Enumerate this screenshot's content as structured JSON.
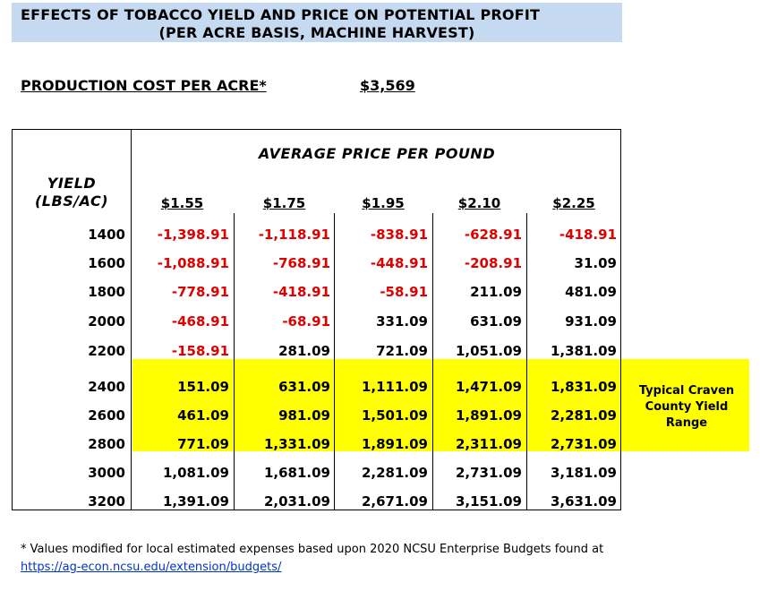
{
  "title": {
    "line1": "EFFECTS OF TOBACCO YIELD AND PRICE ON POTENTIAL PROFIT",
    "line2": "(PER ACRE BASIS, MACHINE HARVEST)"
  },
  "production_cost": {
    "label": "PRODUCTION COST PER ACRE*",
    "value": "$3,569"
  },
  "table": {
    "price_header": "AVERAGE PRICE PER POUND",
    "yield_header_1": "YIELD",
    "yield_header_2": "(LBS/AC)",
    "prices": [
      "$1.55",
      "$1.75",
      "$1.95",
      "$2.10",
      "$2.25"
    ],
    "rows": [
      {
        "yield": "1400",
        "values": [
          "-1,398.91",
          "-1,118.91",
          "-838.91",
          "-628.91",
          "-418.91"
        ]
      },
      {
        "yield": "1600",
        "values": [
          "-1,088.91",
          "-768.91",
          "-448.91",
          "-208.91",
          "31.09"
        ]
      },
      {
        "yield": "1800",
        "values": [
          "-778.91",
          "-418.91",
          "-58.91",
          "211.09",
          "481.09"
        ]
      },
      {
        "yield": "2000",
        "values": [
          "-468.91",
          "-68.91",
          "331.09",
          "631.09",
          "931.09"
        ]
      },
      {
        "yield": "2200",
        "values": [
          "-158.91",
          "281.09",
          "721.09",
          "1,051.09",
          "1,381.09"
        ]
      },
      {
        "yield": "2400",
        "values": [
          "151.09",
          "631.09",
          "1,111.09",
          "1,471.09",
          "1,831.09"
        ]
      },
      {
        "yield": "2600",
        "values": [
          "461.09",
          "981.09",
          "1,501.09",
          "1,891.09",
          "2,281.09"
        ]
      },
      {
        "yield": "2800",
        "values": [
          "771.09",
          "1,331.09",
          "1,891.09",
          "2,311.09",
          "2,731.09"
        ]
      },
      {
        "yield": "3000",
        "values": [
          "1,081.09",
          "1,681.09",
          "2,281.09",
          "2,731.09",
          "3,181.09"
        ]
      },
      {
        "yield": "3200",
        "values": [
          "1,391.09",
          "2,031.09",
          "2,671.09",
          "3,151.09",
          "3,631.09"
        ]
      }
    ],
    "highlight_note": [
      "Typical Craven",
      "County Yield",
      "Range"
    ],
    "colors": {
      "negative": "#e00000",
      "highlight": "#ffff00",
      "title_bg": "#c5d9f1"
    }
  },
  "footnote": {
    "text": "* Values modified for local estimated expenses based upon 2020 NCSU Enterprise Budgets found at",
    "link": "https://ag-econ.ncsu.edu/extension/budgets/"
  }
}
